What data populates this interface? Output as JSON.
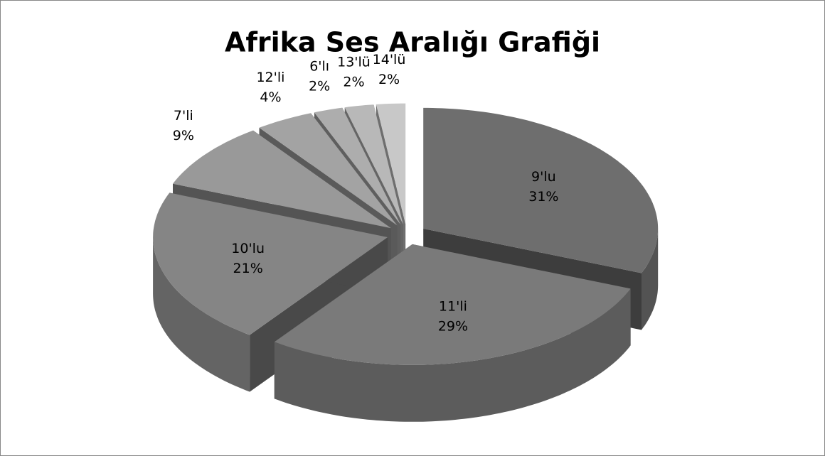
{
  "chart_data": {
    "type": "pie",
    "title": "Afrika Ses Aralığı Grafiği",
    "categories": [
      "9'lu",
      "11'li",
      "10'lu",
      "7'li",
      "12'li",
      "6'lı",
      "13'lü",
      "14'lü"
    ],
    "values": [
      31,
      29,
      21,
      9,
      4,
      2,
      2,
      2
    ],
    "value_labels": [
      "31%",
      "29%",
      "21%",
      "9%",
      "4%",
      "2%",
      "2%",
      "2%"
    ],
    "colors": [
      "#6e6e6e",
      "#7a7a7a",
      "#858585",
      "#999999",
      "#a3a3a3",
      "#adadad",
      "#b8b8b8",
      "#c8c8c8"
    ]
  }
}
